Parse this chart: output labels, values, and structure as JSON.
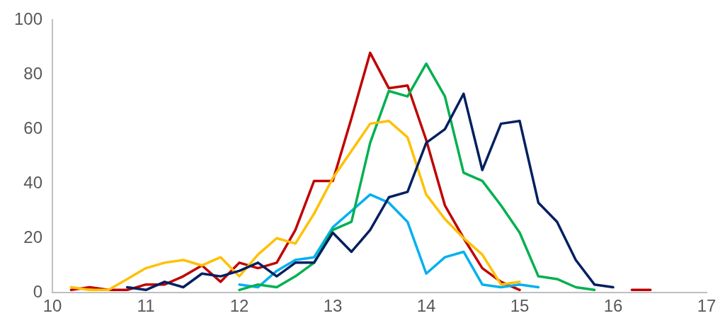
{
  "chart_data": {
    "type": "line",
    "xlim": [
      10,
      17
    ],
    "xticks": [
      10,
      11,
      12,
      13,
      14,
      15,
      16,
      17
    ],
    "ylim": [
      0,
      100
    ],
    "yticks": [
      0,
      20,
      40,
      60,
      80,
      100
    ],
    "grid": false,
    "legend": false,
    "marker": "none",
    "line_style": "solid",
    "series": [
      {
        "color": "#002060",
        "x": [
          10.8,
          11,
          11.2,
          11.4,
          11.6,
          11.8,
          12,
          12.2,
          12.4,
          12.6,
          12.8,
          13,
          13.2,
          13.4,
          13.6,
          13.8,
          14,
          14.2,
          14.4,
          14.6,
          14.8,
          15,
          15.2,
          15.4,
          15.6,
          15.8,
          16
        ],
        "values": [
          2,
          1,
          4,
          2,
          7,
          6,
          8,
          11,
          6,
          11,
          11,
          22,
          15,
          23,
          35,
          37,
          55,
          60,
          73,
          45,
          62,
          63,
          33,
          26,
          12,
          3,
          2
        ]
      },
      {
        "color": "#ffc000",
        "x": [
          10.2,
          10.4,
          10.6,
          10.8,
          11,
          11.2,
          11.4,
          11.6,
          11.8,
          12,
          12.2,
          12.4,
          12.6,
          12.8,
          13,
          13.2,
          13.4,
          13.6,
          13.8,
          14,
          14.2,
          14.4,
          14.6,
          14.8,
          15
        ],
        "values": [
          2,
          1,
          1,
          5,
          9,
          11,
          12,
          10,
          13,
          6,
          14,
          20,
          18,
          29,
          42,
          52,
          62,
          63,
          57,
          36,
          27,
          20,
          14,
          3,
          4
        ]
      },
      {
        "color": "#00b050",
        "x": [
          12,
          12.2,
          12.4,
          12.6,
          12.8,
          13,
          13.2,
          13.4,
          13.6,
          13.8,
          14,
          14.2,
          14.4,
          14.6,
          14.8,
          15,
          15.2,
          15.4,
          15.6,
          15.8
        ],
        "values": [
          1,
          3,
          2,
          6,
          11,
          23,
          26,
          55,
          74,
          72,
          84,
          72,
          44,
          41,
          32,
          22,
          6,
          5,
          2,
          1
        ]
      },
      {
        "color": "#00b0f0",
        "x": [
          12,
          12.2,
          12.4,
          12.6,
          12.8,
          13,
          13.2,
          13.4,
          13.6,
          13.8,
          14,
          14.2,
          14.4,
          14.6,
          14.8,
          15,
          15.2
        ],
        "values": [
          3,
          2,
          8,
          12,
          13,
          24,
          30,
          36,
          33,
          26,
          7,
          13,
          15,
          3,
          2,
          3,
          2
        ]
      },
      {
        "color": "#c00000",
        "x": [
          10.2,
          10.4,
          10.6,
          10.8,
          11,
          11.2,
          11.4,
          11.6,
          11.8,
          12,
          12.2,
          12.4,
          12.6,
          12.8,
          13,
          13.2,
          13.4,
          13.6,
          13.8,
          14,
          14.2,
          14.4,
          14.6,
          14.8,
          15,
          15.2,
          15.4,
          15.6,
          15.8,
          16,
          16.2,
          16.4
        ],
        "values": [
          1,
          2,
          1,
          1,
          3,
          3,
          6,
          10,
          4,
          11,
          9,
          11,
          23,
          41,
          41,
          64,
          88,
          75,
          76,
          56,
          32,
          20,
          9,
          4,
          1,
          null,
          null,
          null,
          null,
          null,
          1,
          1
        ]
      }
    ]
  }
}
